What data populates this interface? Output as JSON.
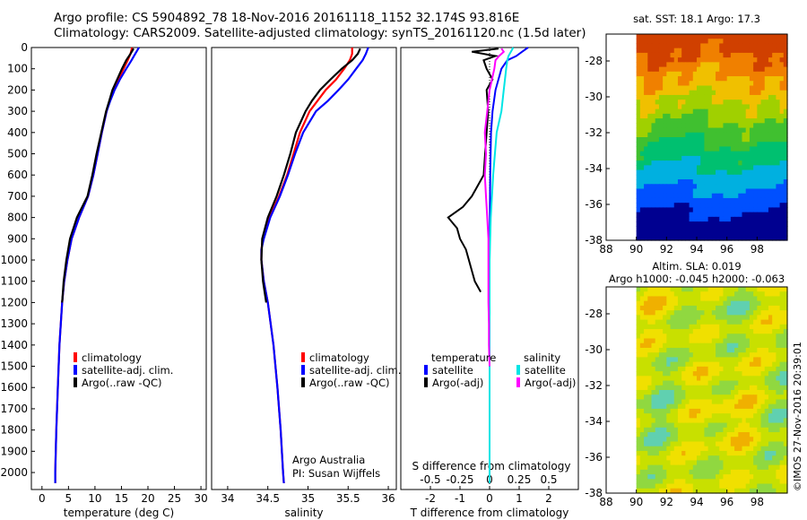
{
  "header": {
    "line1": "Argo profile: CS 5904892_78 18-Nov-2016 20161118_1152 32.174S 93.816E",
    "line2": "Climatology: CARS2009. Satellite-adjusted climatology: synTS_20161120.nc (1.5d later)"
  },
  "colors": {
    "climatology": "#ff0000",
    "satellite": "#0000ff",
    "argo": "#000000",
    "salinity_satellite": "#00e5e5",
    "salinity_argo": "#ff00ff"
  },
  "chart_data": [
    {
      "id": "temperature",
      "type": "line",
      "xlabel": "temperature (deg C)",
      "ylabel": "",
      "xlim": [
        -2,
        31
      ],
      "ylim": [
        2080,
        0
      ],
      "xticks": [
        0,
        5,
        10,
        15,
        20,
        25,
        30
      ],
      "yticks": [
        0,
        100,
        200,
        300,
        400,
        500,
        600,
        700,
        800,
        900,
        1000,
        1100,
        1200,
        1300,
        1400,
        1500,
        1600,
        1700,
        1800,
        1900,
        2000
      ],
      "legend": [
        "climatology",
        "satellite-adj. clim.",
        "Argo(..raw -QC)"
      ],
      "legend_position": "lower-right",
      "series": [
        {
          "name": "climatology",
          "depth": [
            0,
            30,
            60,
            100,
            150,
            200,
            250,
            300,
            400,
            500,
            600,
            700,
            800,
            900,
            1000,
            1100,
            1200,
            1400,
            1600,
            1800,
            2000,
            2050
          ],
          "values": [
            17.0,
            16.7,
            16.2,
            15.4,
            14.4,
            13.5,
            12.8,
            12.2,
            11.3,
            10.5,
            9.7,
            8.7,
            7.0,
            5.6,
            4.8,
            4.2,
            3.8,
            3.3,
            3.0,
            2.7,
            2.5,
            2.5
          ]
        },
        {
          "name": "satellite-adj. clim.",
          "depth": [
            0,
            30,
            60,
            100,
            150,
            200,
            250,
            300,
            400,
            500,
            600,
            700,
            800,
            900,
            1000,
            1100,
            1200,
            1400,
            1600,
            1800,
            2000,
            2050
          ],
          "values": [
            18.3,
            17.6,
            16.9,
            15.9,
            14.7,
            13.7,
            12.9,
            12.2,
            11.3,
            10.5,
            9.7,
            8.7,
            7.0,
            5.6,
            4.8,
            4.2,
            3.8,
            3.3,
            3.0,
            2.7,
            2.5,
            2.5
          ]
        },
        {
          "name": "Argo(..raw -QC)",
          "depth": [
            5,
            30,
            60,
            100,
            150,
            200,
            250,
            300,
            400,
            500,
            600,
            700,
            800,
            900,
            1000,
            1100,
            1200
          ],
          "values": [
            17.3,
            16.7,
            15.9,
            15.1,
            14.2,
            13.3,
            12.7,
            12.1,
            11.2,
            10.3,
            9.5,
            8.6,
            6.6,
            5.3,
            4.6,
            4.1,
            3.8
          ]
        }
      ]
    },
    {
      "id": "salinity",
      "type": "line",
      "xlabel": "salinity",
      "xlim": [
        33.8,
        36.1
      ],
      "ylim": [
        2080,
        0
      ],
      "xticks": [
        34,
        34.5,
        35,
        35.5,
        36
      ],
      "legend": [
        "climatology",
        "satellite-adj. clim.",
        "Argo(..raw -QC)"
      ],
      "legend_position": "lower-right",
      "annotation": [
        "Argo Australia",
        "PI: Susan Wijffels"
      ],
      "series": [
        {
          "name": "climatology",
          "depth": [
            0,
            30,
            60,
            100,
            150,
            200,
            250,
            300,
            400,
            500,
            600,
            700,
            800,
            900,
            950,
            1000,
            1100,
            1200,
            1400,
            1600,
            1800,
            2000,
            2050
          ],
          "values": [
            35.55,
            35.55,
            35.52,
            35.45,
            35.35,
            35.22,
            35.12,
            35.02,
            34.9,
            34.82,
            34.74,
            34.64,
            34.52,
            34.44,
            34.42,
            34.42,
            34.45,
            34.5,
            34.57,
            34.62,
            34.66,
            34.69,
            34.7
          ]
        },
        {
          "name": "satellite-adj. clim.",
          "depth": [
            0,
            30,
            60,
            100,
            150,
            200,
            250,
            300,
            400,
            500,
            600,
            700,
            800,
            900,
            950,
            1000,
            1100,
            1200,
            1400,
            1600,
            1800,
            2000,
            2050
          ],
          "values": [
            35.75,
            35.72,
            35.68,
            35.6,
            35.5,
            35.38,
            35.25,
            35.1,
            34.94,
            34.84,
            34.75,
            34.65,
            34.53,
            34.45,
            34.42,
            34.42,
            34.45,
            34.5,
            34.57,
            34.62,
            34.66,
            34.69,
            34.7
          ]
        },
        {
          "name": "Argo(..raw -QC)",
          "depth": [
            5,
            30,
            60,
            100,
            150,
            200,
            250,
            300,
            400,
            500,
            600,
            700,
            800,
            900,
            1000,
            1100,
            1200
          ],
          "values": [
            35.65,
            35.62,
            35.55,
            35.42,
            35.28,
            35.15,
            35.05,
            34.97,
            34.85,
            34.78,
            34.7,
            34.61,
            34.5,
            34.43,
            34.42,
            34.44,
            34.48
          ]
        }
      ]
    },
    {
      "id": "difference",
      "type": "line",
      "xlabel": "T difference from climatology",
      "xlabel2": "S difference from climatology",
      "xlim": [
        -3,
        3
      ],
      "ylim": [
        2080,
        0
      ],
      "xticks": [
        -2,
        -1,
        0,
        1,
        2
      ],
      "xticks2": [
        -0.5,
        -0.25,
        0,
        0.25,
        0.5
      ],
      "xticks2_labels": [
        "-0.5",
        "-0.25",
        "0",
        "0.25",
        "0.5"
      ],
      "legend_headers": [
        "temperature",
        "salinity"
      ],
      "legend": [
        "satellite",
        "Argo(-adj)",
        "satellite",
        "Argo(-adj)"
      ],
      "series": [
        {
          "name": "satellite",
          "group": "temperature",
          "depth": [
            0,
            20,
            40,
            60,
            100,
            200,
            300,
            400,
            600,
            800,
            1000,
            1500,
            2000,
            2050
          ],
          "values": [
            1.3,
            1.1,
            0.9,
            0.6,
            0.4,
            0.2,
            0.1,
            0.05,
            0.02,
            0.01,
            0.0,
            0.0,
            0.0,
            0.0
          ]
        },
        {
          "name": "Argo(-adj)",
          "group": "temperature",
          "depth": [
            5,
            20,
            40,
            60,
            100,
            150,
            200,
            300,
            400,
            500,
            600,
            650,
            700,
            750,
            800,
            850,
            900,
            950,
            1000,
            1050,
            1100,
            1150
          ],
          "values": [
            0.3,
            -0.6,
            0.2,
            -0.2,
            -0.1,
            0.1,
            -0.1,
            -0.05,
            -0.1,
            -0.15,
            -0.2,
            -0.4,
            -0.6,
            -0.9,
            -1.4,
            -1.1,
            -1.0,
            -0.8,
            -0.7,
            -0.6,
            -0.5,
            -0.3
          ]
        },
        {
          "name": "satellite",
          "group": "salinity",
          "depth": [
            0,
            20,
            40,
            60,
            100,
            200,
            300,
            400,
            600,
            800,
            1000,
            1500,
            2000,
            2050
          ],
          "values": [
            0.2,
            0.18,
            0.16,
            0.15,
            0.14,
            0.12,
            0.1,
            0.06,
            0.03,
            0.01,
            0.0,
            0.0,
            0.0,
            0.0
          ]
        },
        {
          "name": "Argo(-adj)",
          "group": "salinity",
          "depth": [
            5,
            20,
            40,
            60,
            100,
            200,
            300,
            400,
            500,
            600,
            700,
            800,
            900,
            1000,
            1100,
            1200,
            1300,
            1400,
            1500
          ],
          "values": [
            0.1,
            0.12,
            0.08,
            0.05,
            0.04,
            0.0,
            -0.02,
            -0.04,
            -0.03,
            -0.04,
            -0.03,
            -0.02,
            -0.01,
            -0.01,
            -0.01,
            -0.01,
            -0.005,
            -0.005,
            0.0
          ]
        }
      ]
    },
    {
      "id": "sst-map",
      "type": "heatmap",
      "title": "sat. SST: 18.1  Argo: 17.3",
      "xlim": [
        88,
        100
      ],
      "ylim": [
        -38,
        -26.5
      ],
      "xticks": [
        88,
        90,
        92,
        94,
        96,
        98
      ],
      "yticks": [
        -28,
        -30,
        -32,
        -34,
        -36,
        -38
      ],
      "data_x_range": [
        90,
        100
      ],
      "data_y_range": [
        -38,
        -26.5
      ],
      "sst_range_deg_c": [
        16,
        22
      ],
      "colors": [
        "#000090",
        "#0050ff",
        "#00b0e0",
        "#00c070",
        "#40c030",
        "#a0d000",
        "#f0c000",
        "#f08000",
        "#d04000"
      ]
    },
    {
      "id": "sla-map",
      "type": "heatmap",
      "title": "Altim. SLA: 0.019",
      "subtitle": "Argo h1000: -0.045  h2000: -0.063",
      "xlim": [
        88,
        100
      ],
      "ylim": [
        -38,
        -26.5
      ],
      "xticks": [
        88,
        90,
        92,
        94,
        96,
        98
      ],
      "yticks": [
        -28,
        -30,
        -32,
        -34,
        -36,
        -38
      ],
      "data_x_range": [
        90,
        100
      ],
      "data_y_range": [
        -38,
        -26.5
      ],
      "colors": [
        "#60d0b0",
        "#90d840",
        "#c8e000",
        "#f0e000",
        "#f0b000"
      ]
    }
  ],
  "side_credit": "©IMOS 27-Nov-2016 20:39:01"
}
